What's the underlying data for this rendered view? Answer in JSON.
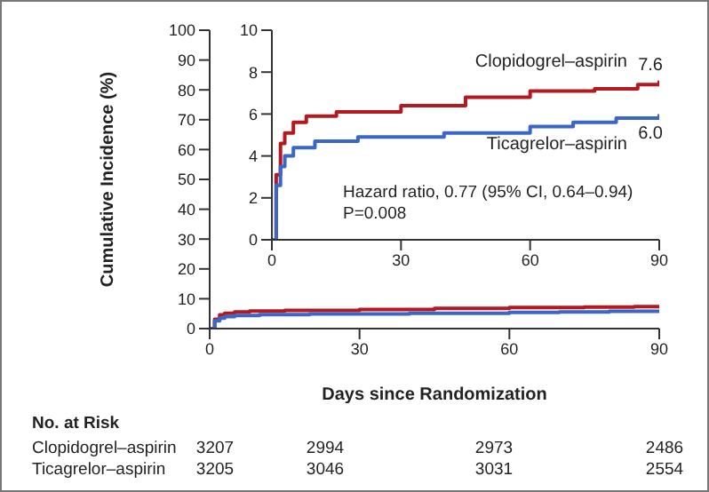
{
  "chart_data": [
    {
      "type": "step",
      "xlabel": "Days since Randomization",
      "ylabel": "Cumulative Incidence (%)",
      "xlim": [
        0,
        90
      ],
      "ylim": [
        0,
        100
      ],
      "xticks": [
        0,
        30,
        60,
        90
      ],
      "yticks": [
        0,
        10,
        20,
        30,
        40,
        50,
        60,
        70,
        80,
        90,
        100
      ],
      "annotations": [
        "No. at Risk",
        "Clopidogrel–aspirin",
        "3207",
        "2994",
        "2973",
        "2486",
        "Ticagrelor–aspirin",
        "3205",
        "3046",
        "3031",
        "2554"
      ],
      "series": [
        {
          "color": "#b3191e",
          "x": [
            0,
            1,
            2,
            3,
            5,
            8,
            15,
            30,
            45,
            60,
            75,
            85,
            90
          ],
          "values": [
            0,
            3.1,
            4.6,
            5.1,
            5.6,
            5.9,
            6.1,
            6.4,
            6.8,
            7.1,
            7.2,
            7.4,
            7.6
          ]
        },
        {
          "color": "#3a66c8",
          "x": [
            0,
            1,
            2,
            3,
            5,
            10,
            20,
            40,
            60,
            70,
            80,
            90
          ],
          "values": [
            0,
            2.6,
            3.5,
            4.0,
            4.4,
            4.7,
            4.9,
            5.1,
            5.4,
            5.6,
            5.8,
            6.0
          ]
        }
      ]
    },
    {
      "type": "step",
      "xlim": [
        0,
        90
      ],
      "ylim": [
        0,
        10
      ],
      "xticks": [
        0,
        30,
        60,
        90
      ],
      "yticks": [
        0,
        2,
        4,
        6,
        8,
        10
      ],
      "annotations": [
        "Hazard ratio, 0.77 (95% CI, 0.64–0.94)",
        "P=0.008"
      ],
      "series": [
        {
          "name": "Clopidogrel–aspirin",
          "color": "#b3191e",
          "x": [
            0,
            1,
            2,
            3,
            5,
            8,
            15,
            30,
            45,
            60,
            75,
            85,
            90
          ],
          "values": [
            0,
            3.1,
            4.6,
            5.1,
            5.6,
            5.9,
            6.1,
            6.4,
            6.8,
            7.1,
            7.2,
            7.4,
            7.6
          ],
          "value_labels": [
            null,
            null,
            null,
            null,
            null,
            null,
            null,
            null,
            null,
            null,
            null,
            null,
            "7.6"
          ]
        },
        {
          "name": "Ticagrelor–aspirin",
          "color": "#3a66c8",
          "x": [
            0,
            1,
            2,
            3,
            5,
            10,
            20,
            40,
            60,
            70,
            80,
            90
          ],
          "values": [
            0,
            2.6,
            3.5,
            4.0,
            4.4,
            4.7,
            4.9,
            5.1,
            5.4,
            5.6,
            5.8,
            6.0
          ],
          "value_labels": [
            null,
            null,
            null,
            null,
            null,
            null,
            null,
            null,
            null,
            null,
            null,
            "6.0"
          ]
        }
      ]
    }
  ]
}
